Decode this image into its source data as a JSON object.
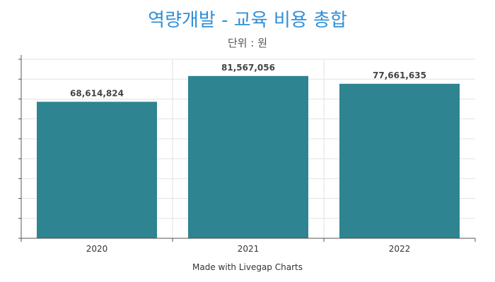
{
  "chart_data": {
    "type": "bar",
    "title": "역량개발 - 교육 비용 총합",
    "subtitle": "단위 : 원",
    "categories": [
      "2020",
      "2021",
      "2022"
    ],
    "values": [
      68614824,
      81567056,
      77661635
    ],
    "data_labels": [
      "68,614,824",
      "81,567,056",
      "77,661,635"
    ],
    "ylim": [
      0,
      90000000
    ],
    "y_tick_labels_shown": false,
    "grid": true,
    "bar_color": "#2e8491",
    "title_color": "#2f8fd8",
    "footer": "Made with Livegap Charts"
  }
}
